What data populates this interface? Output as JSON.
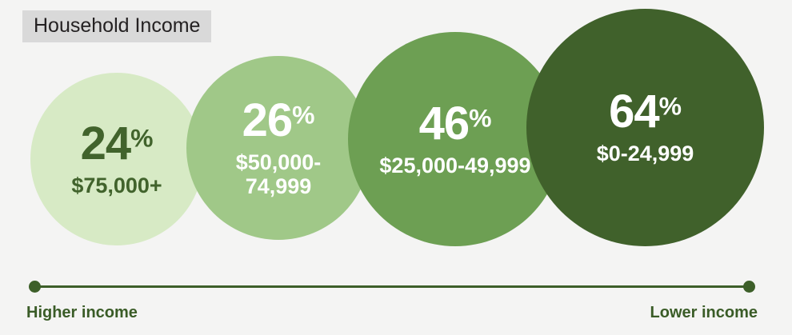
{
  "title": {
    "label": "Household Income"
  },
  "ui": {
    "percent_sign": "%"
  },
  "chart_data": {
    "type": "scatter",
    "variant": "proportional-bubble",
    "title": "Household Income",
    "categories": [
      "$75,000+",
      "$50,000-74,999",
      "$25,000-49,999",
      "$0-24,999"
    ],
    "values": [
      24,
      26,
      46,
      64
    ],
    "value_unit": "%",
    "axis_annotations": {
      "left": "Higher income",
      "right": "Lower income"
    },
    "legend": "none",
    "layout_hint": "four circles left-to-right, area grows with value, arrow-less axis underneath from higher to lower income"
  },
  "bubbles": [
    {
      "percent": "24",
      "label": "$75,000+",
      "fill": "#d7eac5",
      "text_color": "#41632c"
    },
    {
      "percent": "26",
      "label": "$50,000-\n74,999",
      "fill": "#a0c888",
      "text_color": "#ffffff"
    },
    {
      "percent": "46",
      "label": "$25,000-49,999",
      "fill": "#6d9f53",
      "text_color": "#ffffff"
    },
    {
      "percent": "64",
      "label": "$0-24,999",
      "fill": "#40612b",
      "text_color": "#ffffff"
    }
  ],
  "axis": {
    "left_label": "Higher income",
    "right_label": "Lower income",
    "line_color": "#3d5f29",
    "label_color": "#3a5c27"
  },
  "colors": {
    "background": "#f4f4f3",
    "title_badge_bg": "#d9d9d9",
    "title_text": "#242122"
  }
}
